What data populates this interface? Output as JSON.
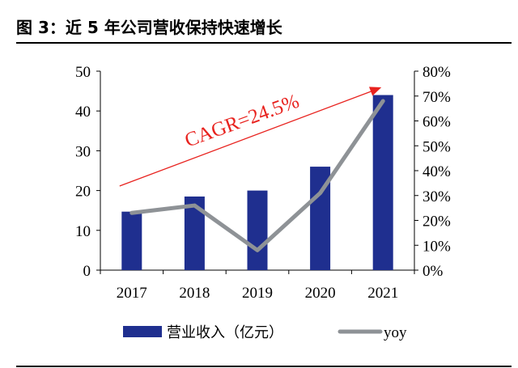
{
  "title": "图  3：近 5 年公司营收保持快速增长",
  "chart_data": {
    "type": "bar",
    "categories": [
      "2017",
      "2018",
      "2019",
      "2020",
      "2021"
    ],
    "series": [
      {
        "name": "营业收入（亿元）",
        "type": "bar",
        "axis": "left",
        "color": "#1f2f8f",
        "values": [
          14.7,
          18.5,
          20.0,
          26.0,
          44.0
        ]
      },
      {
        "name": "yoy",
        "type": "line",
        "axis": "right",
        "color": "#8e9296",
        "values": [
          0.23,
          0.26,
          0.08,
          0.31,
          0.68
        ]
      }
    ],
    "ylim_left": [
      0,
      50
    ],
    "ylim_right": [
      0,
      0.8
    ],
    "yticks_left": [
      "0",
      "10",
      "20",
      "30",
      "40",
      "50"
    ],
    "yticks_right": [
      "0%",
      "10%",
      "20%",
      "30%",
      "40%",
      "50%",
      "60%",
      "70%",
      "80%"
    ],
    "annotation": {
      "text": "CAGR=24.5%",
      "color": "#e8231f"
    },
    "legend_position": "bottom",
    "grid": false
  }
}
